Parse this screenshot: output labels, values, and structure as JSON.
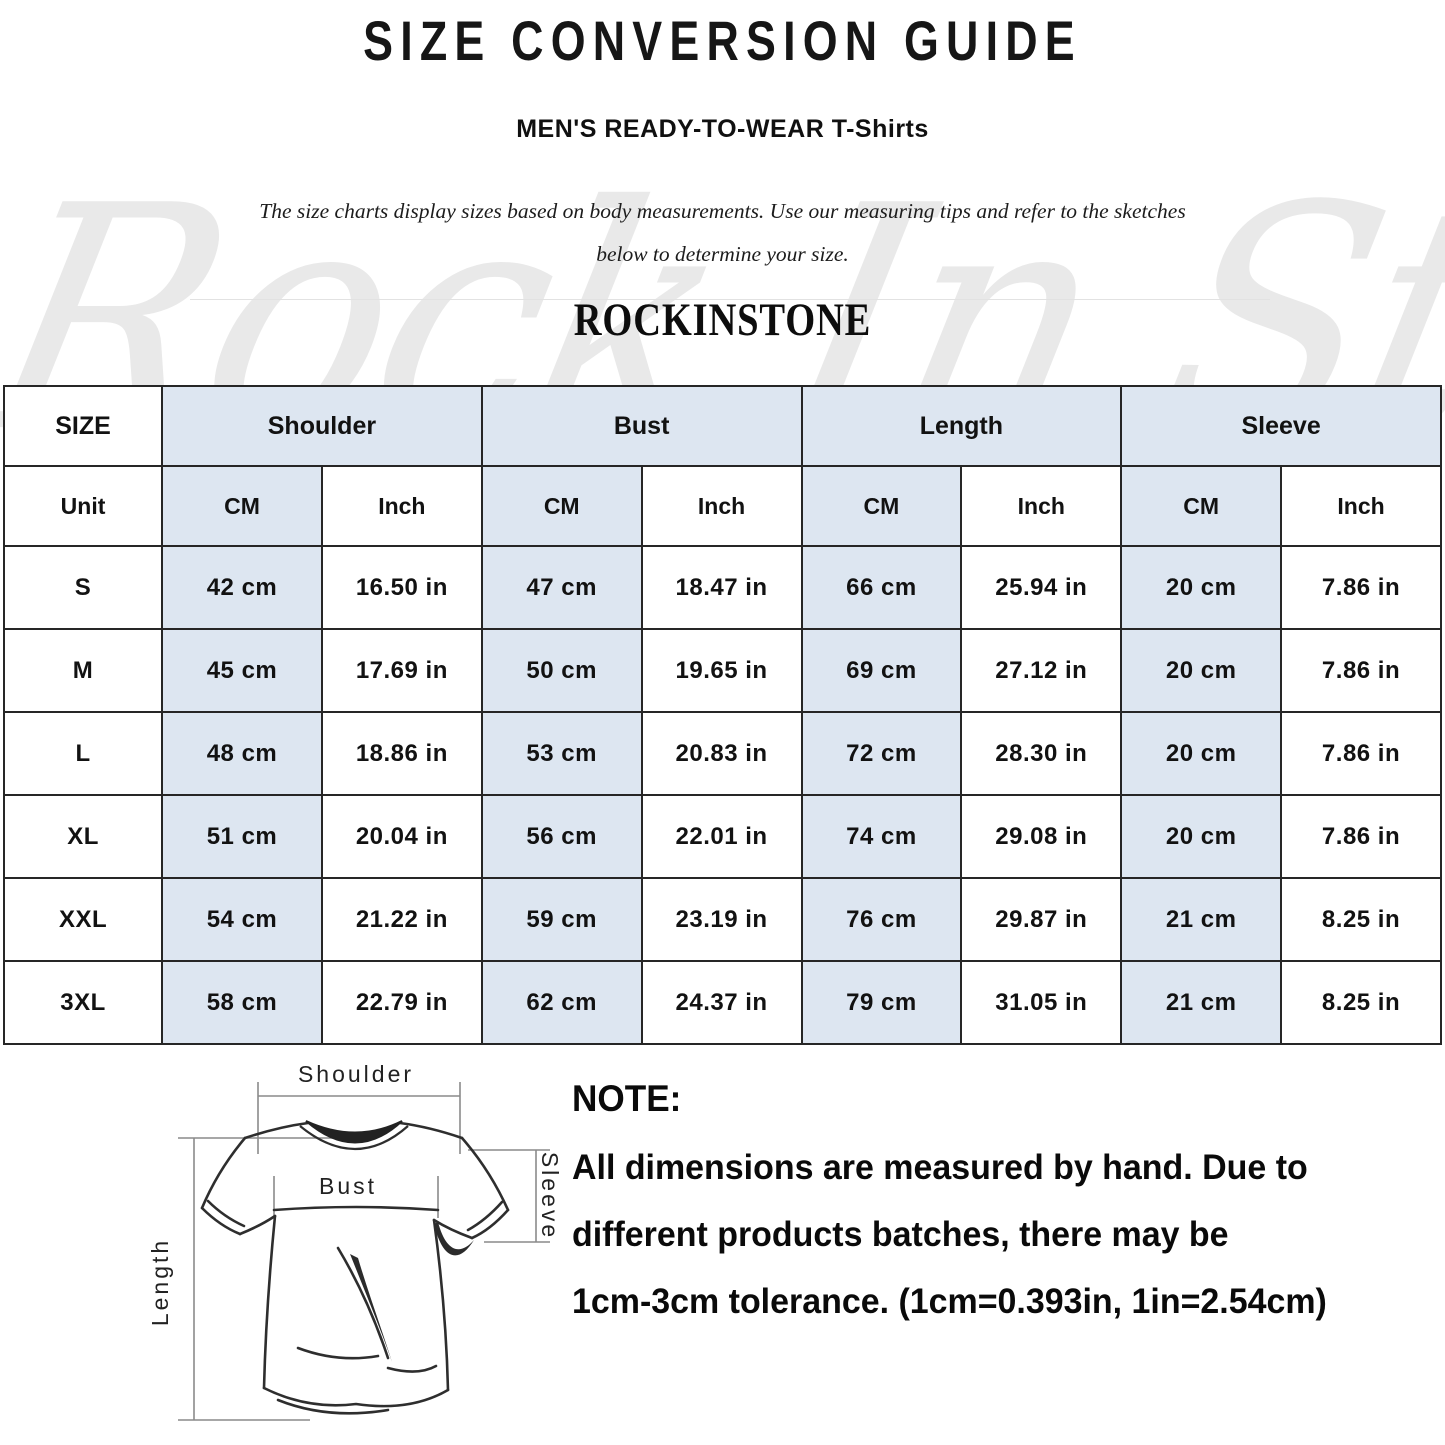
{
  "header": {
    "title": "SIZE CONVERSION GUIDE",
    "subtitle": "MEN'S READY-TO-WEAR T-Shirts",
    "description_line1": "The size charts display sizes based on body measurements. Use our measuring tips and refer to the sketches",
    "description_line2": "below to determine your size.",
    "brand": "ROCKINSTONE",
    "watermark_text": "Rock In Stone"
  },
  "colors": {
    "shaded_cell": "#dde6f1",
    "table_border": "#262626",
    "watermark": "#e9e9e9"
  },
  "table": {
    "group_headers": [
      "SIZE",
      "Shoulder",
      "Bust",
      "Length",
      "Sleeve"
    ],
    "unit_row": [
      "Unit",
      "CM",
      "Inch",
      "CM",
      "Inch",
      "CM",
      "Inch",
      "CM",
      "Inch"
    ],
    "rows": [
      {
        "size": "S",
        "cells": [
          "42 cm",
          "16.50 in",
          "47 cm",
          "18.47 in",
          "66 cm",
          "25.94 in",
          "20 cm",
          "7.86 in"
        ]
      },
      {
        "size": "M",
        "cells": [
          "45 cm",
          "17.69 in",
          "50 cm",
          "19.65 in",
          "69 cm",
          "27.12 in",
          "20 cm",
          "7.86 in"
        ]
      },
      {
        "size": "L",
        "cells": [
          "48 cm",
          "18.86 in",
          "53 cm",
          "20.83 in",
          "72 cm",
          "28.30 in",
          "20 cm",
          "7.86 in"
        ]
      },
      {
        "size": "XL",
        "cells": [
          "51 cm",
          "20.04 in",
          "56 cm",
          "22.01 in",
          "74 cm",
          "29.08 in",
          "20 cm",
          "7.86 in"
        ]
      },
      {
        "size": "XXL",
        "cells": [
          "54 cm",
          "21.22 in",
          "59 cm",
          "23.19 in",
          "76 cm",
          "29.87 in",
          "21 cm",
          "8.25 in"
        ]
      },
      {
        "size": "3XL",
        "cells": [
          "58 cm",
          "22.79 in",
          "62 cm",
          "24.37 in",
          "79 cm",
          "31.05 in",
          "21 cm",
          "8.25 in"
        ]
      }
    ]
  },
  "diagram": {
    "shoulder_label": "Shoulder",
    "bust_label": "Bust",
    "length_label": "Length",
    "sleeve_label": "Sleeve"
  },
  "note": {
    "heading": "NOTE:",
    "line1": "All dimensions are measured by hand. Due to",
    "line2": "different products batches, there may be",
    "line3": "1cm-3cm tolerance. (1cm=0.393in, 1in=2.54cm)"
  }
}
